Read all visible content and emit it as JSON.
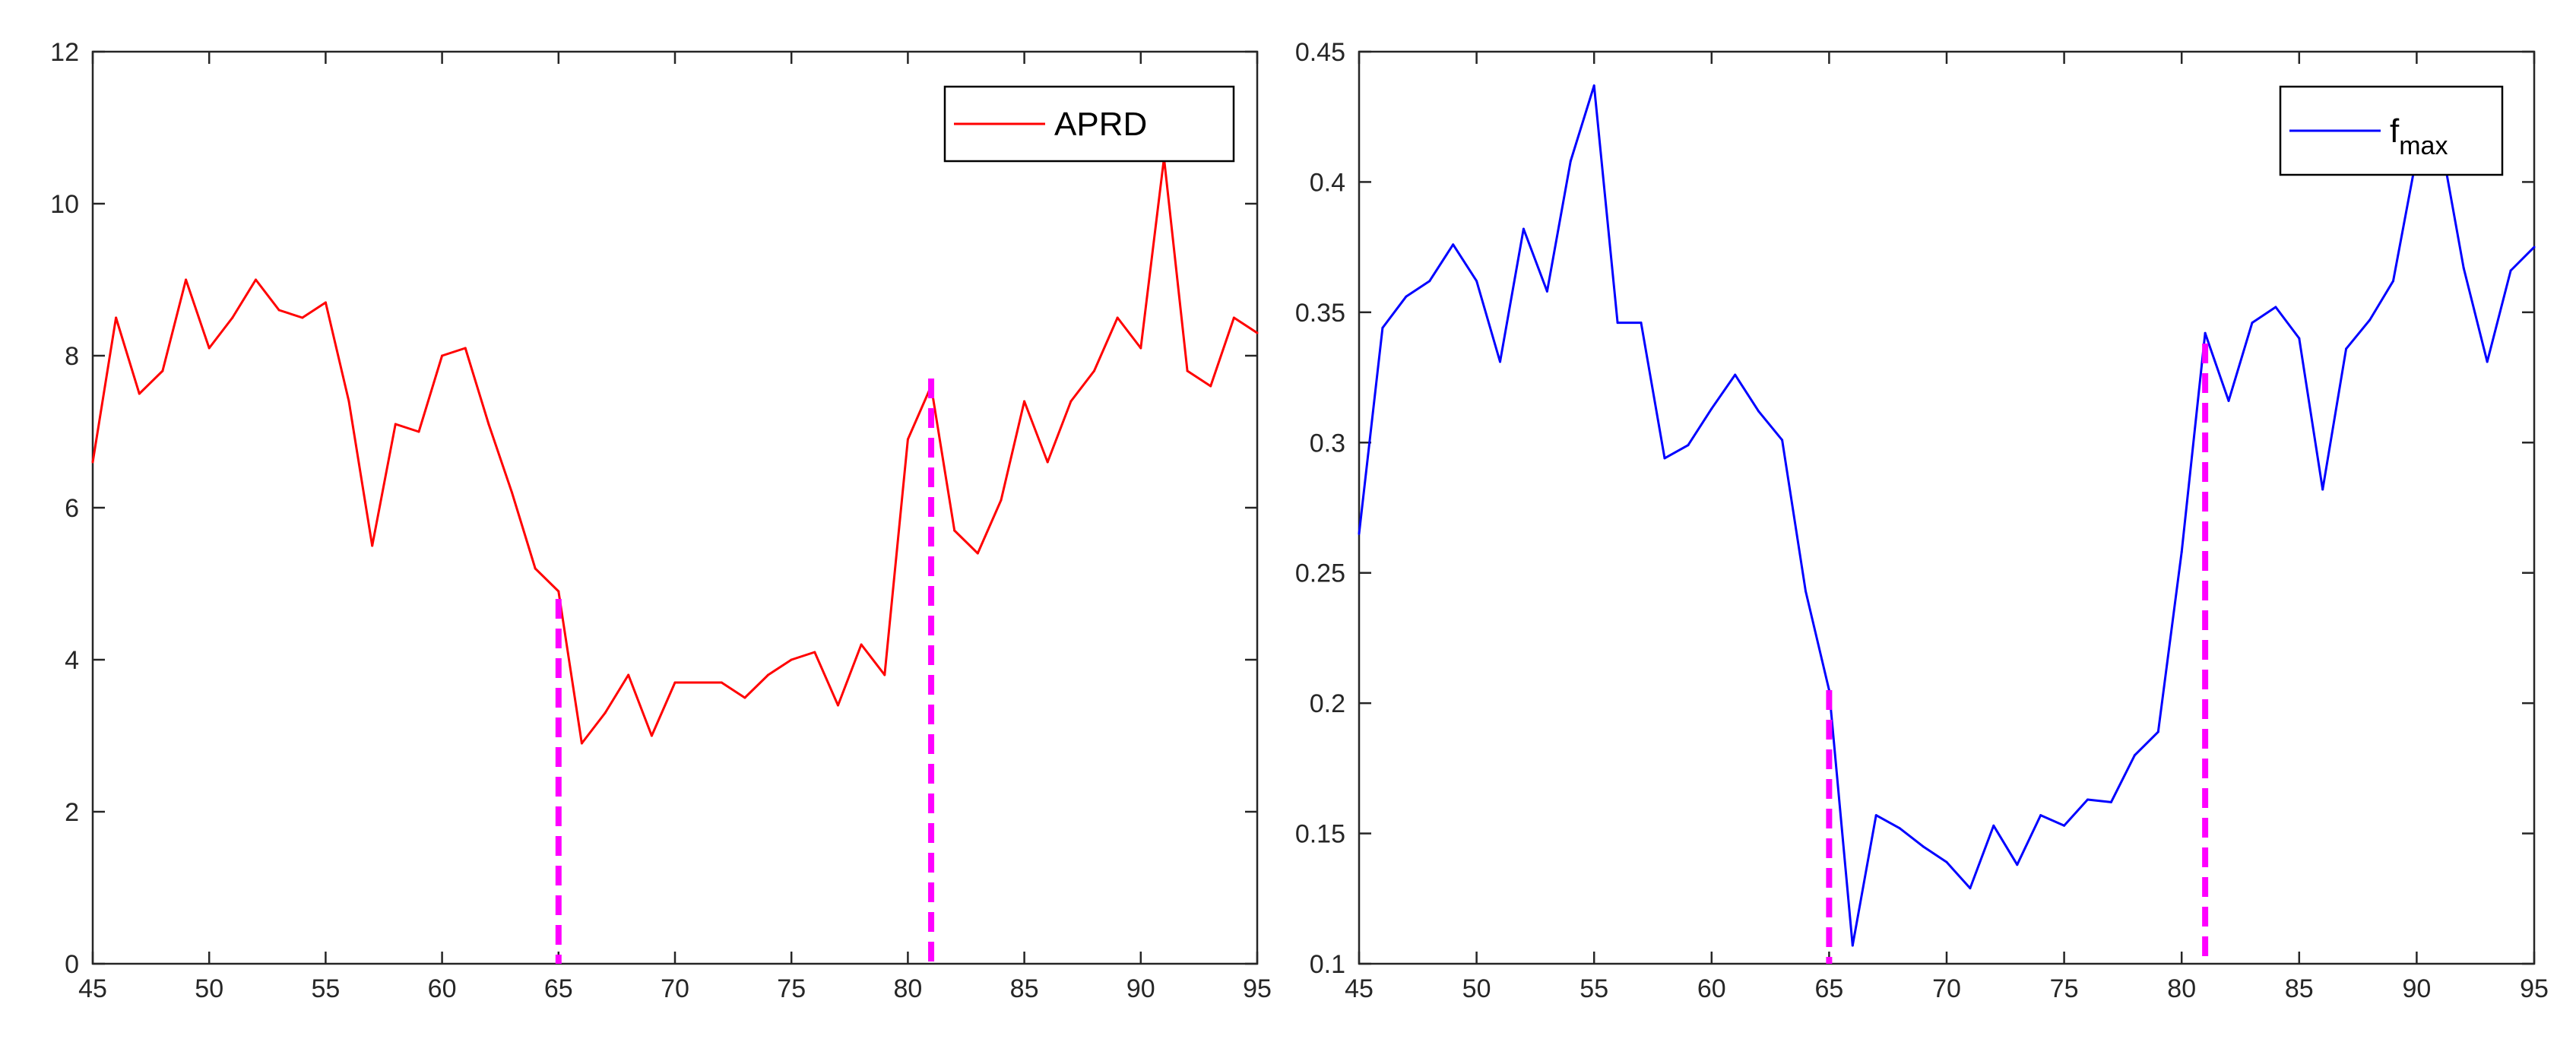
{
  "chart_data": [
    {
      "type": "line",
      "title": "",
      "xlabel": "",
      "ylabel": "",
      "xlim": [
        45,
        95
      ],
      "ylim": [
        0,
        12
      ],
      "xticks": [
        45,
        50,
        55,
        60,
        65,
        70,
        75,
        80,
        85,
        90,
        95
      ],
      "yticks": [
        0,
        2,
        4,
        6,
        8,
        10,
        12
      ],
      "ytick_labels": [
        "0",
        "2",
        "4",
        "6",
        "8",
        "10",
        "12"
      ],
      "grid": false,
      "legend_position": "top-right",
      "series": [
        {
          "name": "APRD",
          "color": "#ff0000",
          "x": [
            45,
            46,
            47,
            48,
            49,
            50,
            51,
            52,
            53,
            54,
            55,
            56,
            57,
            58,
            59,
            60,
            61,
            62,
            63,
            64,
            65,
            66,
            67,
            68,
            69,
            70,
            71,
            72,
            73,
            74,
            75,
            76,
            77,
            78,
            79,
            80,
            81,
            82,
            83,
            84,
            85,
            86,
            87,
            88,
            89,
            90,
            91,
            92,
            93,
            94,
            95
          ],
          "values": [
            6.6,
            8.5,
            7.5,
            7.8,
            9.0,
            8.1,
            8.5,
            9.0,
            8.6,
            8.5,
            8.7,
            7.4,
            5.5,
            7.1,
            7.0,
            8.0,
            8.1,
            7.1,
            6.2,
            5.2,
            4.9,
            2.9,
            3.3,
            3.8,
            3.0,
            3.7,
            3.7,
            3.7,
            3.5,
            3.8,
            4.0,
            4.1,
            3.4,
            4.2,
            3.8,
            6.9,
            7.6,
            5.7,
            5.4,
            6.1,
            7.4,
            6.6,
            7.4,
            7.8,
            8.5,
            8.1,
            10.6,
            7.8,
            7.6,
            8.5,
            8.3
          ]
        }
      ],
      "marker_lines": [
        {
          "x": 65,
          "y": 4.8,
          "color": "#ff00ff"
        },
        {
          "x": 81,
          "y": 7.7,
          "color": "#ff00ff"
        }
      ]
    },
    {
      "type": "line",
      "title": "",
      "xlabel": "",
      "ylabel": "",
      "xlim": [
        45,
        95
      ],
      "ylim": [
        0.1,
        0.45
      ],
      "xticks": [
        45,
        50,
        55,
        60,
        65,
        70,
        75,
        80,
        85,
        90,
        95
      ],
      "yticks": [
        0.1,
        0.15,
        0.2,
        0.25,
        0.3,
        0.35,
        0.4,
        0.45
      ],
      "ytick_labels": [
        "0.1",
        "0.15",
        "0.2",
        "0.25",
        "0.3",
        "0.35",
        "0.4",
        "0.45"
      ],
      "grid": false,
      "legend_position": "top-right",
      "series": [
        {
          "name": "f",
          "name_subscript": "max",
          "color": "#0000ff",
          "x": [
            45,
            46,
            47,
            48,
            49,
            50,
            51,
            52,
            53,
            54,
            55,
            56,
            57,
            58,
            59,
            60,
            61,
            62,
            63,
            64,
            65,
            66,
            67,
            68,
            69,
            70,
            71,
            72,
            73,
            74,
            75,
            76,
            77,
            78,
            79,
            80,
            81,
            82,
            83,
            84,
            85,
            86,
            87,
            88,
            89,
            90,
            91,
            92,
            93,
            94,
            95
          ],
          "values": [
            0.265,
            0.344,
            0.356,
            0.362,
            0.376,
            0.362,
            0.331,
            0.382,
            0.358,
            0.408,
            0.437,
            0.346,
            0.346,
            0.294,
            0.299,
            0.313,
            0.326,
            0.312,
            0.301,
            0.243,
            0.205,
            0.107,
            0.157,
            0.152,
            0.145,
            0.139,
            0.129,
            0.153,
            0.138,
            0.157,
            0.153,
            0.163,
            0.162,
            0.18,
            0.189,
            0.258,
            0.342,
            0.316,
            0.346,
            0.352,
            0.34,
            0.282,
            0.336,
            0.347,
            0.362,
            0.41,
            0.417,
            0.367,
            0.331,
            0.366,
            0.375
          ]
        }
      ],
      "marker_lines": [
        {
          "x": 65,
          "y": 0.205,
          "color": "#ff00ff"
        },
        {
          "x": 81,
          "y": 0.338,
          "color": "#ff00ff"
        }
      ]
    }
  ]
}
